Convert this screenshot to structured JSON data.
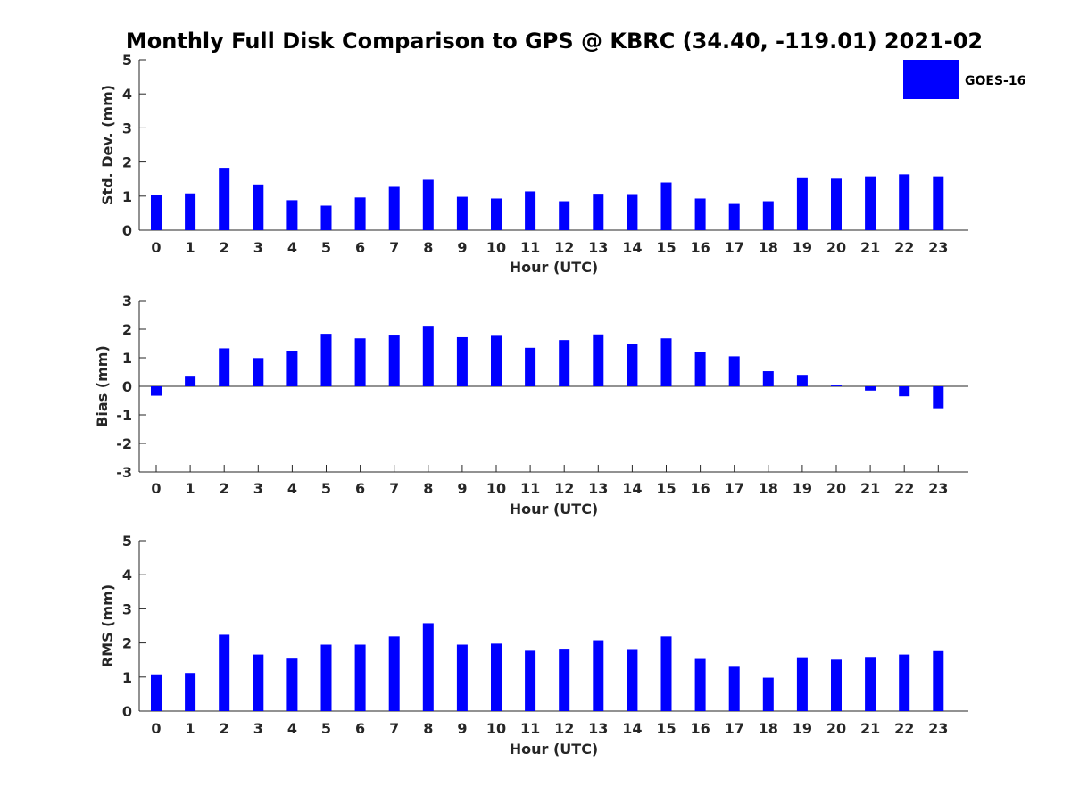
{
  "title": "Monthly Full Disk Comparison to GPS @ KBRC (34.40, -119.01) 2021-02",
  "legend": {
    "label": "GOES-16",
    "color": "#0000FF"
  },
  "chart_data": [
    {
      "type": "bar",
      "title": "Monthly Full Disk Comparison to GPS @ KBRC (34.40, -119.01) 2021-02",
      "xlabel": "Hour (UTC)",
      "ylabel": "Std. Dev. (mm)",
      "categories": [
        "0",
        "1",
        "2",
        "3",
        "4",
        "5",
        "6",
        "7",
        "8",
        "9",
        "10",
        "11",
        "12",
        "13",
        "14",
        "15",
        "16",
        "17",
        "18",
        "19",
        "20",
        "21",
        "22",
        "23"
      ],
      "series": [
        {
          "name": "GOES-16",
          "values": [
            1.03,
            1.08,
            1.83,
            1.34,
            0.88,
            0.72,
            0.96,
            1.27,
            1.48,
            0.98,
            0.93,
            1.14,
            0.85,
            1.07,
            1.06,
            1.4,
            0.93,
            0.77,
            0.85,
            1.55,
            1.51,
            1.58,
            1.64,
            1.58
          ]
        }
      ],
      "ylim": [
        0,
        5
      ],
      "yticks": [
        "0",
        "1",
        "2",
        "3",
        "4",
        "5"
      ]
    },
    {
      "type": "bar",
      "xlabel": "Hour (UTC)",
      "ylabel": "Bias (mm)",
      "categories": [
        "0",
        "1",
        "2",
        "3",
        "4",
        "5",
        "6",
        "7",
        "8",
        "9",
        "10",
        "11",
        "12",
        "13",
        "14",
        "15",
        "16",
        "17",
        "18",
        "19",
        "20",
        "21",
        "22",
        "23"
      ],
      "series": [
        {
          "name": "GOES-16",
          "values": [
            -0.33,
            0.37,
            1.33,
            0.99,
            1.25,
            1.84,
            1.68,
            1.78,
            2.12,
            1.72,
            1.77,
            1.35,
            1.62,
            1.82,
            1.5,
            1.68,
            1.21,
            1.05,
            0.53,
            0.4,
            0.03,
            -0.15,
            -0.35,
            -0.77
          ]
        }
      ],
      "ylim": [
        -3,
        3
      ],
      "yticks": [
        "-3",
        "-2",
        "-1",
        "0",
        "1",
        "2",
        "3"
      ]
    },
    {
      "type": "bar",
      "xlabel": "Hour (UTC)",
      "ylabel": "RMS (mm)",
      "categories": [
        "0",
        "1",
        "2",
        "3",
        "4",
        "5",
        "6",
        "7",
        "8",
        "9",
        "10",
        "11",
        "12",
        "13",
        "14",
        "15",
        "16",
        "17",
        "18",
        "19",
        "20",
        "21",
        "22",
        "23"
      ],
      "series": [
        {
          "name": "GOES-16",
          "values": [
            1.08,
            1.12,
            2.24,
            1.66,
            1.54,
            1.95,
            1.95,
            2.19,
            2.58,
            1.95,
            1.98,
            1.77,
            1.83,
            2.08,
            1.82,
            2.19,
            1.53,
            1.3,
            0.98,
            1.58,
            1.51,
            1.59,
            1.66,
            1.76
          ]
        }
      ],
      "ylim": [
        0,
        5
      ],
      "yticks": [
        "0",
        "1",
        "2",
        "3",
        "4",
        "5"
      ]
    }
  ]
}
